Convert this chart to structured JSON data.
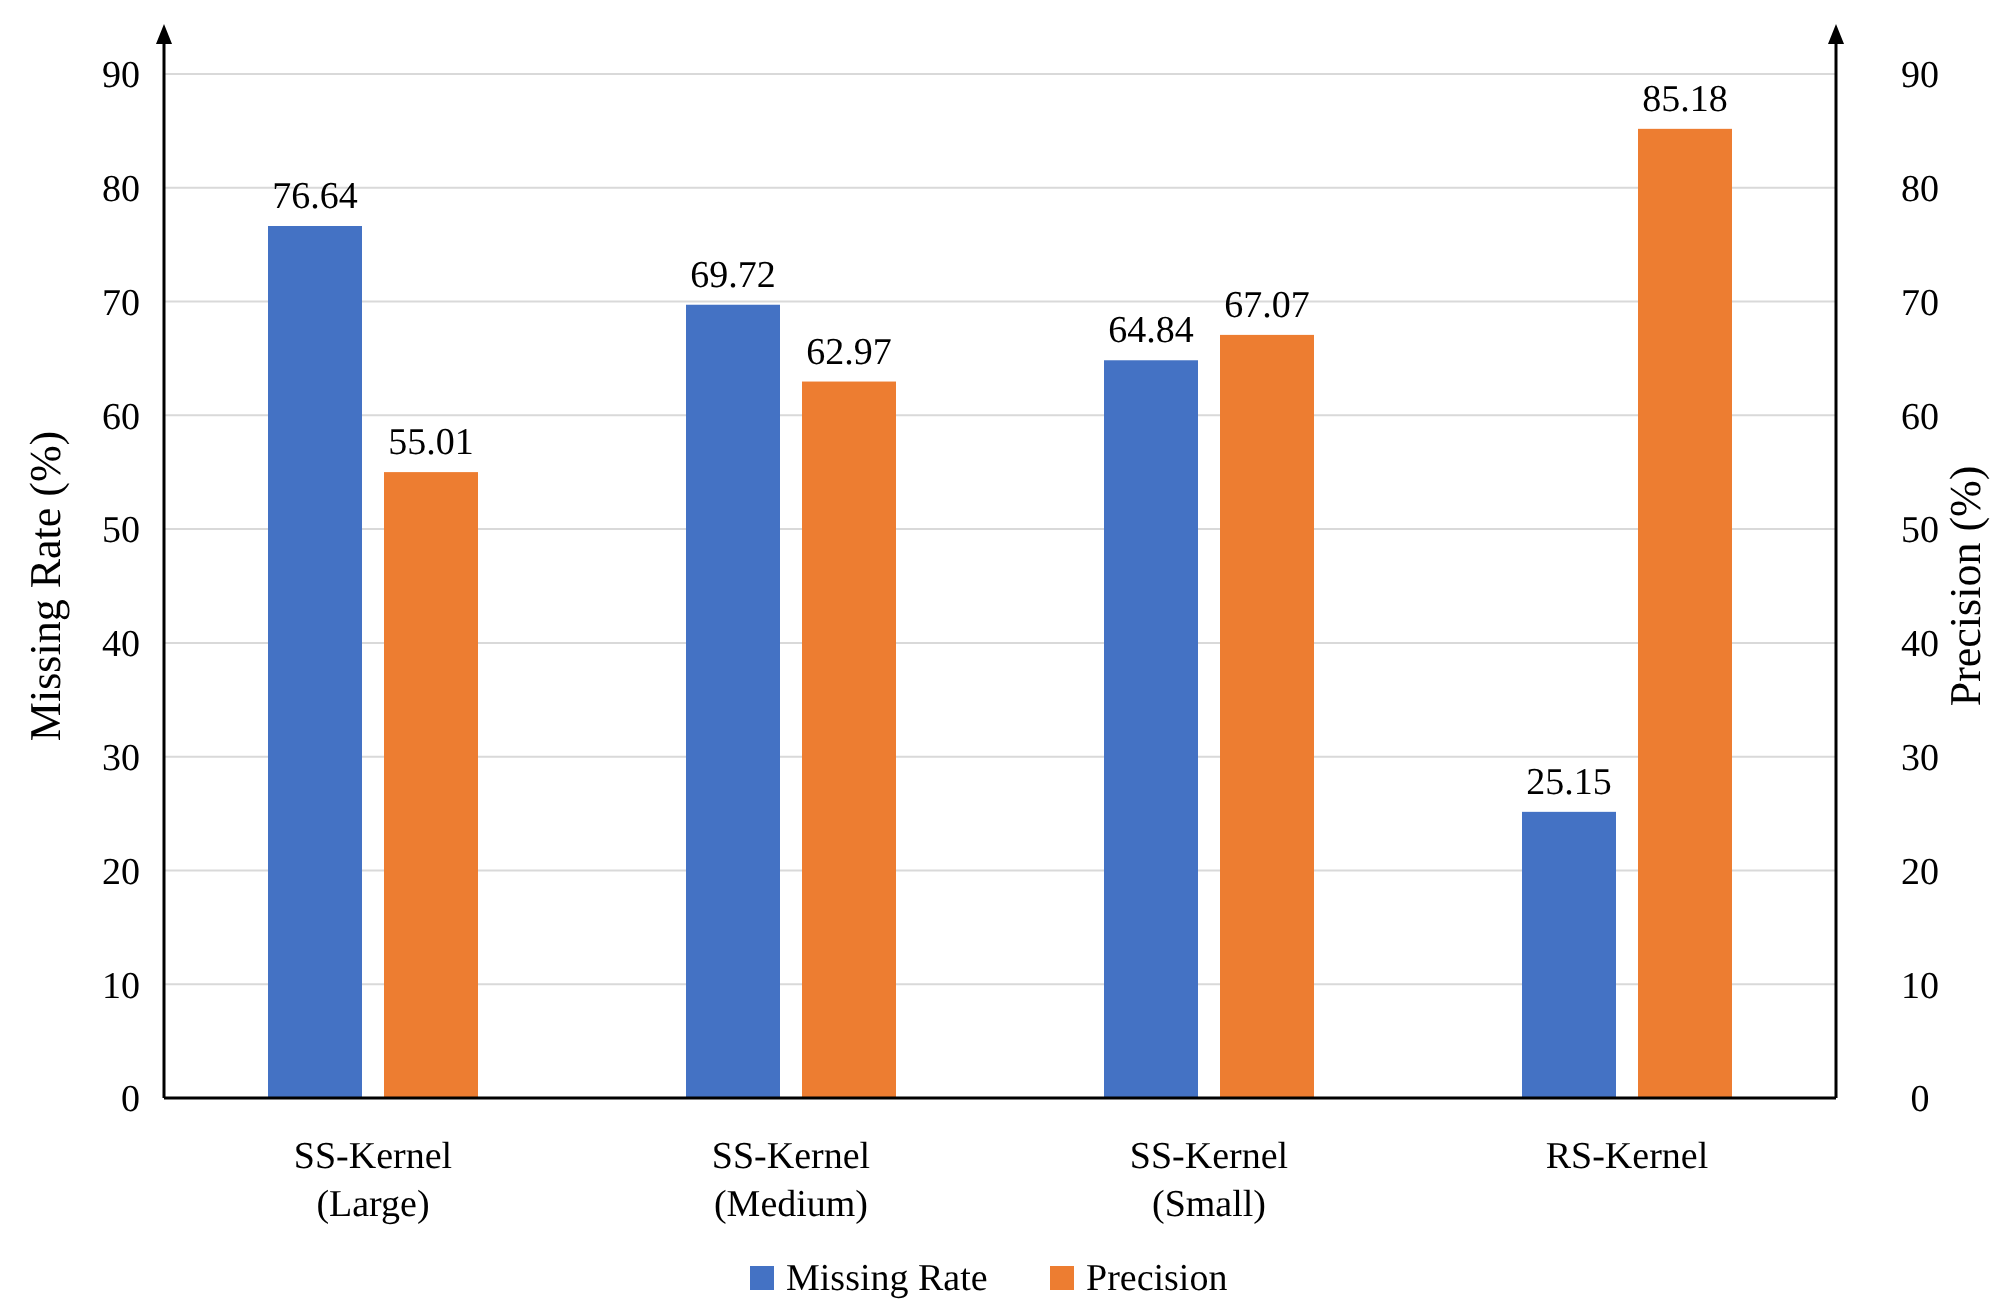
{
  "chart_data": {
    "type": "bar",
    "ylabel": "Missing Rate (%)",
    "y2label": "Precision (%)",
    "categories": [
      "SS-Kernel\n(Large)",
      "SS-Kernel\n(Medium)",
      "SS-Kernel\n(Small)",
      "RS-Kernel"
    ],
    "series": [
      {
        "name": "Missing Rate",
        "color": "#4472c4",
        "values": [
          76.64,
          69.72,
          64.84,
          25.15
        ]
      },
      {
        "name": "Precision",
        "color": "#ed7d31",
        "values": [
          55.01,
          62.97,
          67.07,
          85.18
        ],
        "axis": "y2"
      }
    ],
    "ylim": [
      0,
      90
    ],
    "yticks": [
      0,
      10,
      20,
      30,
      40,
      50,
      60,
      70,
      80,
      90
    ],
    "y2lim": [
      0,
      90
    ],
    "y2ticks": [
      0,
      10,
      20,
      30,
      40,
      50,
      60,
      70,
      80,
      90
    ],
    "grid": "y",
    "legend": "bottom",
    "data_labels": true
  }
}
